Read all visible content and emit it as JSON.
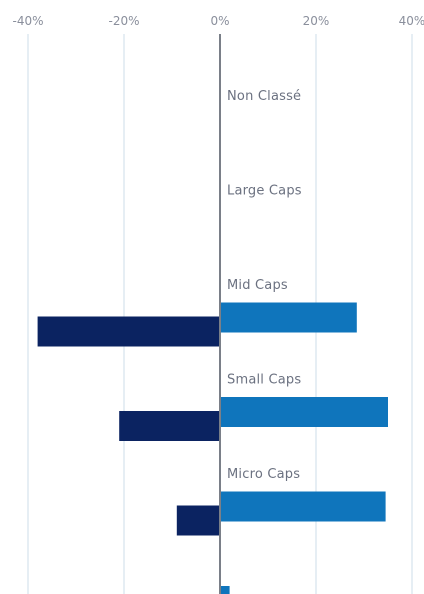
{
  "chart_data": {
    "type": "bar",
    "orientation": "horizontal",
    "categories": [
      "Non Classé",
      "Large Caps",
      "Mid Caps",
      "Small Caps",
      "Micro Caps"
    ],
    "series": [
      {
        "values": [
          0,
          28.5,
          35,
          34.5,
          2
        ],
        "color": "#0f75bc"
      },
      {
        "values": [
          0,
          -38,
          -21,
          -9,
          0
        ],
        "color": "#0b2361"
      }
    ],
    "x_ticks": [
      "-40%",
      "-20%",
      "0%",
      "20%",
      "40%"
    ],
    "xlim": [
      -40,
      40
    ],
    "grid": true,
    "legend": "none"
  }
}
